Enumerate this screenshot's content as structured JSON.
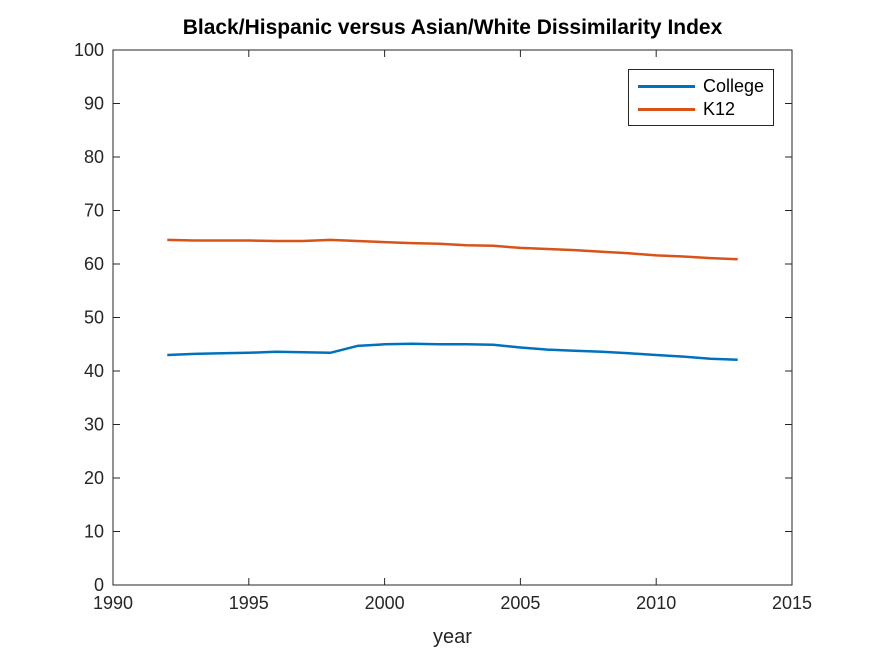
{
  "chart_data": {
    "type": "line",
    "title": "Black/Hispanic versus Asian/White Dissimilarity Index",
    "xlabel": "year",
    "ylabel": "",
    "xlim": [
      1990,
      2015
    ],
    "ylim": [
      0,
      100
    ],
    "xticks": [
      1990,
      1995,
      2000,
      2005,
      2010,
      2015
    ],
    "yticks": [
      0,
      10,
      20,
      30,
      40,
      50,
      60,
      70,
      80,
      90,
      100
    ],
    "grid": false,
    "legend_position": "top-right",
    "axis_color": "#262626",
    "background_color": "#ffffff",
    "x": [
      1992,
      1993,
      1994,
      1995,
      1996,
      1997,
      1998,
      1999,
      2000,
      2001,
      2002,
      2003,
      2004,
      2005,
      2006,
      2007,
      2008,
      2009,
      2010,
      2011,
      2012,
      2013
    ],
    "series": [
      {
        "name": "College",
        "color": "#0072BD",
        "values": [
          43.0,
          43.2,
          43.3,
          43.4,
          43.6,
          43.5,
          43.4,
          44.7,
          45.0,
          45.1,
          45.0,
          45.0,
          44.9,
          44.4,
          44.0,
          43.8,
          43.6,
          43.3,
          43.0,
          42.7,
          42.3,
          42.1
        ]
      },
      {
        "name": "K12",
        "color": "#D95319",
        "values": [
          64.5,
          64.4,
          64.4,
          64.4,
          64.3,
          64.3,
          64.5,
          64.3,
          64.1,
          63.9,
          63.8,
          63.5,
          63.4,
          63.0,
          62.8,
          62.6,
          62.3,
          62.0,
          61.6,
          61.4,
          61.1,
          60.9
        ]
      }
    ]
  }
}
